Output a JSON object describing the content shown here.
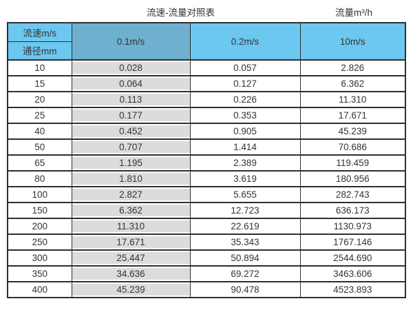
{
  "page": {
    "title": "流速-流量对照表",
    "unit_label": "流量m³/h"
  },
  "chart_data": {
    "type": "table",
    "title": "流速-流量对照表",
    "unit_label": "流量m³/h",
    "corner_top_label": "流速m/s",
    "corner_bottom_label": "通径mm",
    "velocity_columns": [
      "0.1m/s",
      "0.2m/s",
      "10m/s"
    ],
    "rows": [
      {
        "diameter_mm": "10",
        "values": [
          "0.028",
          "0.057",
          "2.826"
        ]
      },
      {
        "diameter_mm": "15",
        "values": [
          "0.064",
          "0.127",
          "6.362"
        ]
      },
      {
        "diameter_mm": "20",
        "values": [
          "0.113",
          "0.226",
          "11.310"
        ]
      },
      {
        "diameter_mm": "25",
        "values": [
          "0.177",
          "0.353",
          "17.671"
        ]
      },
      {
        "diameter_mm": "40",
        "values": [
          "0.452",
          "0.905",
          "45.239"
        ]
      },
      {
        "diameter_mm": "50",
        "values": [
          "0.707",
          "1.414",
          "70.686"
        ]
      },
      {
        "diameter_mm": "65",
        "values": [
          "1.195",
          "2.389",
          "119.459"
        ]
      },
      {
        "diameter_mm": "80",
        "values": [
          "1.810",
          "3.619",
          "180.956"
        ]
      },
      {
        "diameter_mm": "100",
        "values": [
          "2.827",
          "5.655",
          "282.743"
        ]
      },
      {
        "diameter_mm": "150",
        "values": [
          "6.362",
          "12.723",
          "636.173"
        ]
      },
      {
        "diameter_mm": "200",
        "values": [
          "11.310",
          "22.619",
          "1130.973"
        ]
      },
      {
        "diameter_mm": "250",
        "values": [
          "17.671",
          "35.343",
          "1767.146"
        ]
      },
      {
        "diameter_mm": "300",
        "values": [
          "25.447",
          "50.894",
          "2544.690"
        ]
      },
      {
        "diameter_mm": "350",
        "values": [
          "34.636",
          "69.272",
          "3463.606"
        ]
      },
      {
        "diameter_mm": "400",
        "values": [
          "45.239",
          "90.478",
          "4523.893"
        ]
      }
    ]
  },
  "colors": {
    "header_blue": "#6cc8f0",
    "header_blue_muted": "#6fb0d0",
    "shaded_column": "#dcdcdc",
    "border": "#2e2e2e",
    "text": "#333333",
    "page_bg": "#ffffff"
  }
}
